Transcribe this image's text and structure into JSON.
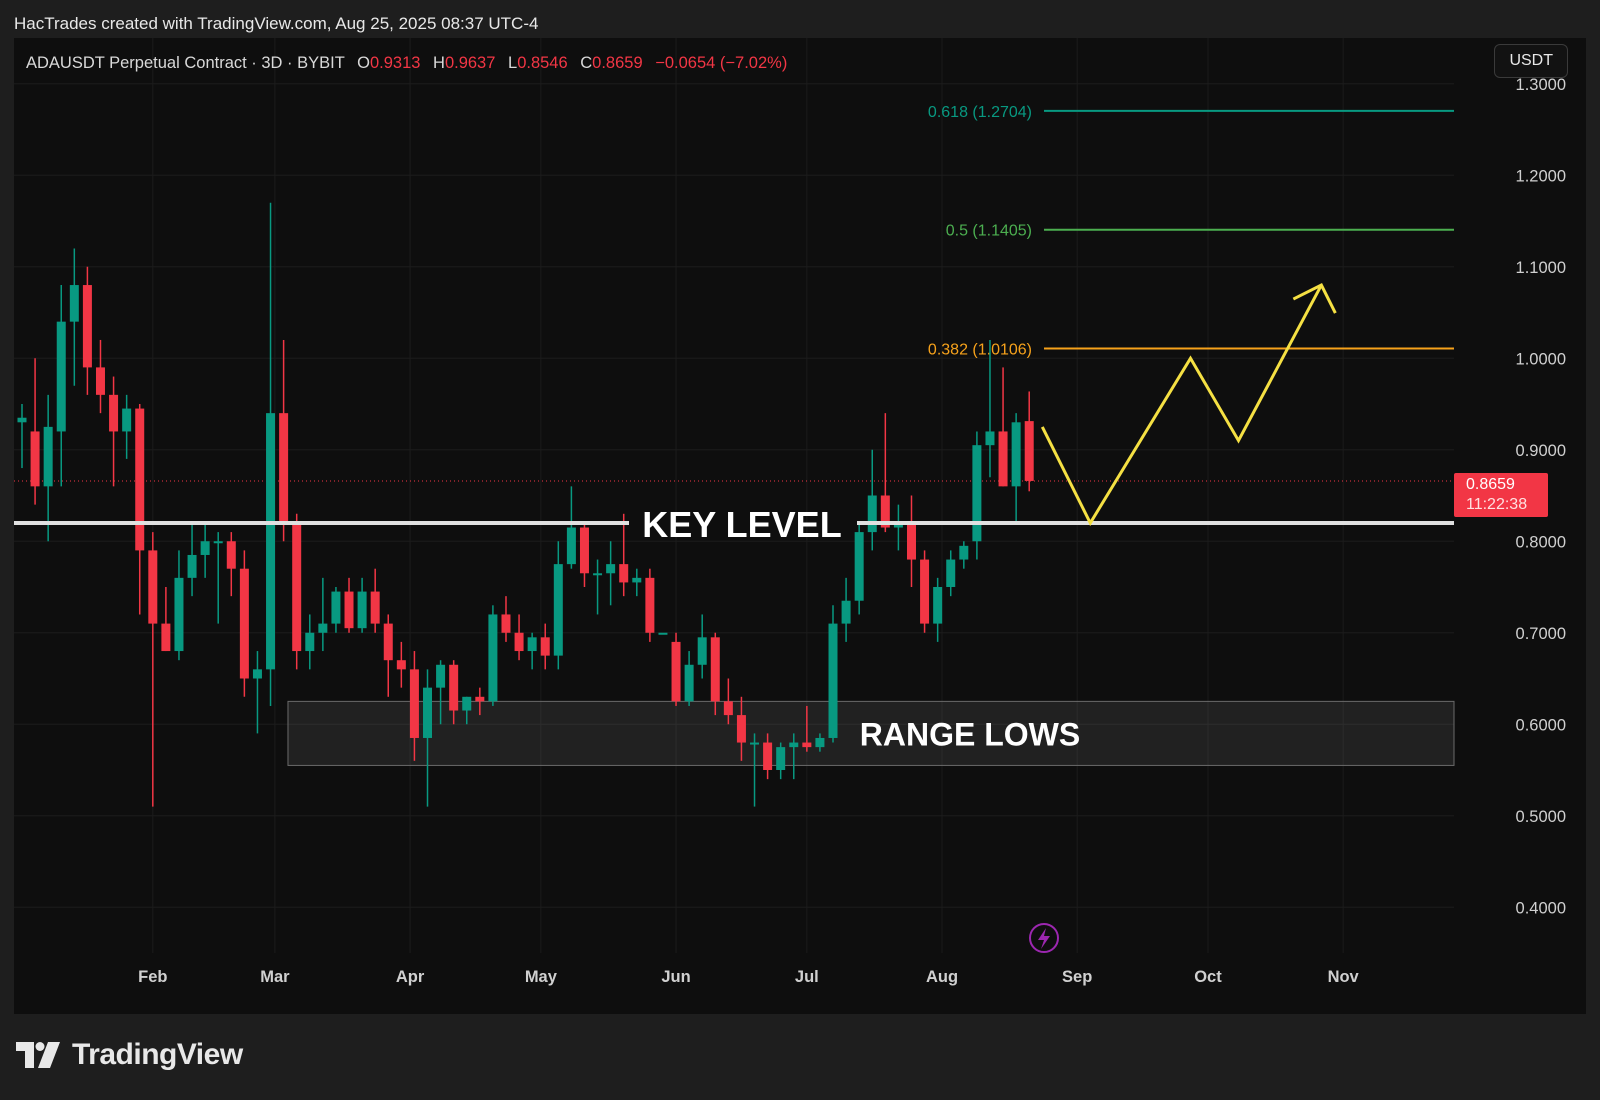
{
  "header": {
    "credit": "HacTrades created with TradingView.com, Aug 25, 2025 08:37 UTC-4"
  },
  "legend": {
    "symbol": "ADAUSDT Perpetual Contract · 3D · BYBIT",
    "open_label": "O",
    "open": "0.9313",
    "high_label": "H",
    "high": "0.9637",
    "low_label": "L",
    "low": "0.8546",
    "close_label": "C",
    "close": "0.8659",
    "change": "−0.0654 (−7.02%)"
  },
  "currency_button": "USDT",
  "brand": "TradingView",
  "colors": {
    "up": "#089981",
    "down": "#f23645",
    "fib_0618": "#089981",
    "fib_05": "#4caf50",
    "fib_0382": "#f7a21b",
    "projection": "#f5e043",
    "key_level": "#e0e0e0",
    "background": "#0e0e0e"
  },
  "chart_data": {
    "type": "candlestick",
    "y_range": [
      0.35,
      1.35
    ],
    "y_ticks": [
      "1.3000",
      "1.2000",
      "1.1000",
      "1.0000",
      "0.9000",
      "0.8000",
      "0.7000",
      "0.6000",
      "0.5000",
      "0.4000"
    ],
    "y_tick_values": [
      1.3,
      1.2,
      1.1,
      1.0,
      0.9,
      0.8,
      0.7,
      0.6,
      0.5,
      0.4
    ],
    "x_labels": [
      "Feb",
      "Mar",
      "Apr",
      "May",
      "Jun",
      "Jul",
      "Aug",
      "Sep",
      "Oct",
      "Nov"
    ],
    "x_label_dates": [
      "2025-02-01",
      "2025-03-01",
      "2025-04-01",
      "2025-05-01",
      "2025-06-01",
      "2025-07-01",
      "2025-08-01",
      "2025-09-01",
      "2025-10-01",
      "2025-11-01"
    ],
    "x_range": [
      "2025-01-02",
      "2025-11-20"
    ],
    "current_price": {
      "value": 0.8659,
      "label": "0.8659",
      "countdown": "11:22:38"
    },
    "key_level": {
      "value": 0.82,
      "label": "KEY LEVEL"
    },
    "range_lows": {
      "low": 0.555,
      "high": 0.625,
      "start": "2025-03-04",
      "label": "RANGE LOWS"
    },
    "fib_levels": [
      {
        "label": "0.618 (1.2704)",
        "value": 1.2704,
        "color": "#089981"
      },
      {
        "label": "0.5 (1.1405)",
        "value": 1.1405,
        "color": "#4caf50"
      },
      {
        "label": "0.382 (1.0106)",
        "value": 1.0106,
        "color": "#f7a21b"
      }
    ],
    "projection_path": [
      {
        "date": "2025-08-24",
        "price": 0.925
      },
      {
        "date": "2025-09-04",
        "price": 0.82
      },
      {
        "date": "2025-09-27",
        "price": 1.0
      },
      {
        "date": "2025-10-08",
        "price": 0.91
      },
      {
        "date": "2025-10-27",
        "price": 1.08
      }
    ],
    "candles": [
      {
        "date": "2025-01-02",
        "o": 0.93,
        "h": 0.95,
        "l": 0.88,
        "c": 0.935
      },
      {
        "date": "2025-01-05",
        "o": 0.92,
        "h": 1.0,
        "l": 0.84,
        "c": 0.86
      },
      {
        "date": "2025-01-08",
        "o": 0.86,
        "h": 0.96,
        "l": 0.8,
        "c": 0.925
      },
      {
        "date": "2025-01-11",
        "o": 0.92,
        "h": 1.08,
        "l": 0.86,
        "c": 1.04
      },
      {
        "date": "2025-01-14",
        "o": 1.04,
        "h": 1.12,
        "l": 0.97,
        "c": 1.08
      },
      {
        "date": "2025-01-17",
        "o": 1.08,
        "h": 1.1,
        "l": 0.96,
        "c": 0.99
      },
      {
        "date": "2025-01-20",
        "o": 0.99,
        "h": 1.02,
        "l": 0.94,
        "c": 0.96
      },
      {
        "date": "2025-01-23",
        "o": 0.96,
        "h": 0.98,
        "l": 0.86,
        "c": 0.92
      },
      {
        "date": "2025-01-26",
        "o": 0.92,
        "h": 0.96,
        "l": 0.89,
        "c": 0.945
      },
      {
        "date": "2025-01-29",
        "o": 0.945,
        "h": 0.95,
        "l": 0.72,
        "c": 0.79
      },
      {
        "date": "2025-02-01",
        "o": 0.79,
        "h": 0.81,
        "l": 0.51,
        "c": 0.71
      },
      {
        "date": "2025-02-04",
        "o": 0.71,
        "h": 0.75,
        "l": 0.68,
        "c": 0.68
      },
      {
        "date": "2025-02-07",
        "o": 0.68,
        "h": 0.79,
        "l": 0.67,
        "c": 0.76
      },
      {
        "date": "2025-02-10",
        "o": 0.76,
        "h": 0.82,
        "l": 0.74,
        "c": 0.785
      },
      {
        "date": "2025-02-13",
        "o": 0.785,
        "h": 0.82,
        "l": 0.76,
        "c": 0.8
      },
      {
        "date": "2025-02-16",
        "o": 0.8,
        "h": 0.81,
        "l": 0.71,
        "c": 0.8
      },
      {
        "date": "2025-02-19",
        "o": 0.8,
        "h": 0.81,
        "l": 0.74,
        "c": 0.77
      },
      {
        "date": "2025-02-22",
        "o": 0.77,
        "h": 0.79,
        "l": 0.63,
        "c": 0.65
      },
      {
        "date": "2025-02-25",
        "o": 0.65,
        "h": 0.68,
        "l": 0.59,
        "c": 0.66
      },
      {
        "date": "2025-02-28",
        "o": 0.66,
        "h": 1.17,
        "l": 0.62,
        "c": 0.94
      },
      {
        "date": "2025-03-03",
        "o": 0.94,
        "h": 1.02,
        "l": 0.8,
        "c": 0.82
      },
      {
        "date": "2025-03-06",
        "o": 0.82,
        "h": 0.83,
        "l": 0.66,
        "c": 0.68
      },
      {
        "date": "2025-03-09",
        "o": 0.68,
        "h": 0.72,
        "l": 0.66,
        "c": 0.7
      },
      {
        "date": "2025-03-12",
        "o": 0.7,
        "h": 0.76,
        "l": 0.68,
        "c": 0.71
      },
      {
        "date": "2025-03-15",
        "o": 0.71,
        "h": 0.75,
        "l": 0.7,
        "c": 0.745
      },
      {
        "date": "2025-03-18",
        "o": 0.745,
        "h": 0.76,
        "l": 0.7,
        "c": 0.705
      },
      {
        "date": "2025-03-21",
        "o": 0.705,
        "h": 0.76,
        "l": 0.7,
        "c": 0.745
      },
      {
        "date": "2025-03-24",
        "o": 0.745,
        "h": 0.77,
        "l": 0.7,
        "c": 0.71
      },
      {
        "date": "2025-03-27",
        "o": 0.71,
        "h": 0.72,
        "l": 0.63,
        "c": 0.67
      },
      {
        "date": "2025-03-30",
        "o": 0.67,
        "h": 0.69,
        "l": 0.64,
        "c": 0.66
      },
      {
        "date": "2025-04-02",
        "o": 0.66,
        "h": 0.68,
        "l": 0.56,
        "c": 0.585
      },
      {
        "date": "2025-04-05",
        "o": 0.585,
        "h": 0.66,
        "l": 0.51,
        "c": 0.64
      },
      {
        "date": "2025-04-08",
        "o": 0.64,
        "h": 0.67,
        "l": 0.6,
        "c": 0.665
      },
      {
        "date": "2025-04-11",
        "o": 0.665,
        "h": 0.67,
        "l": 0.6,
        "c": 0.615
      },
      {
        "date": "2025-04-14",
        "o": 0.615,
        "h": 0.63,
        "l": 0.6,
        "c": 0.63
      },
      {
        "date": "2025-04-17",
        "o": 0.63,
        "h": 0.64,
        "l": 0.61,
        "c": 0.625
      },
      {
        "date": "2025-04-20",
        "o": 0.625,
        "h": 0.73,
        "l": 0.62,
        "c": 0.72
      },
      {
        "date": "2025-04-23",
        "o": 0.72,
        "h": 0.74,
        "l": 0.69,
        "c": 0.7
      },
      {
        "date": "2025-04-26",
        "o": 0.7,
        "h": 0.72,
        "l": 0.67,
        "c": 0.68
      },
      {
        "date": "2025-04-29",
        "o": 0.68,
        "h": 0.7,
        "l": 0.66,
        "c": 0.695
      },
      {
        "date": "2025-05-02",
        "o": 0.695,
        "h": 0.71,
        "l": 0.66,
        "c": 0.675
      },
      {
        "date": "2025-05-05",
        "o": 0.675,
        "h": 0.8,
        "l": 0.66,
        "c": 0.775
      },
      {
        "date": "2025-05-08",
        "o": 0.775,
        "h": 0.86,
        "l": 0.77,
        "c": 0.815
      },
      {
        "date": "2025-05-11",
        "o": 0.815,
        "h": 0.82,
        "l": 0.75,
        "c": 0.765
      },
      {
        "date": "2025-05-14",
        "o": 0.765,
        "h": 0.78,
        "l": 0.72,
        "c": 0.765
      },
      {
        "date": "2025-05-17",
        "o": 0.765,
        "h": 0.8,
        "l": 0.73,
        "c": 0.775
      },
      {
        "date": "2025-05-20",
        "o": 0.775,
        "h": 0.83,
        "l": 0.74,
        "c": 0.755
      },
      {
        "date": "2025-05-23",
        "o": 0.755,
        "h": 0.77,
        "l": 0.74,
        "c": 0.76
      },
      {
        "date": "2025-05-26",
        "o": 0.76,
        "h": 0.77,
        "l": 0.69,
        "c": 0.7
      },
      {
        "date": "2025-05-29",
        "o": 0.7,
        "h": 0.7,
        "l": 0.7,
        "c": 0.7
      },
      {
        "date": "2025-06-01",
        "o": 0.69,
        "h": 0.7,
        "l": 0.62,
        "c": 0.625
      },
      {
        "date": "2025-06-04",
        "o": 0.625,
        "h": 0.68,
        "l": 0.62,
        "c": 0.665
      },
      {
        "date": "2025-06-07",
        "o": 0.665,
        "h": 0.72,
        "l": 0.65,
        "c": 0.695
      },
      {
        "date": "2025-06-10",
        "o": 0.695,
        "h": 0.7,
        "l": 0.61,
        "c": 0.625
      },
      {
        "date": "2025-06-13",
        "o": 0.625,
        "h": 0.65,
        "l": 0.6,
        "c": 0.61
      },
      {
        "date": "2025-06-16",
        "o": 0.61,
        "h": 0.63,
        "l": 0.56,
        "c": 0.58
      },
      {
        "date": "2025-06-19",
        "o": 0.58,
        "h": 0.59,
        "l": 0.51,
        "c": 0.58
      },
      {
        "date": "2025-06-22",
        "o": 0.58,
        "h": 0.59,
        "l": 0.54,
        "c": 0.55
      },
      {
        "date": "2025-06-25",
        "o": 0.55,
        "h": 0.58,
        "l": 0.54,
        "c": 0.575
      },
      {
        "date": "2025-06-28",
        "o": 0.575,
        "h": 0.59,
        "l": 0.54,
        "c": 0.58
      },
      {
        "date": "2025-07-01",
        "o": 0.58,
        "h": 0.62,
        "l": 0.57,
        "c": 0.575
      },
      {
        "date": "2025-07-04",
        "o": 0.575,
        "h": 0.59,
        "l": 0.57,
        "c": 0.585
      },
      {
        "date": "2025-07-07",
        "o": 0.585,
        "h": 0.73,
        "l": 0.58,
        "c": 0.71
      },
      {
        "date": "2025-07-10",
        "o": 0.71,
        "h": 0.76,
        "l": 0.69,
        "c": 0.735
      },
      {
        "date": "2025-07-13",
        "o": 0.735,
        "h": 0.82,
        "l": 0.72,
        "c": 0.81
      },
      {
        "date": "2025-07-16",
        "o": 0.81,
        "h": 0.9,
        "l": 0.79,
        "c": 0.85
      },
      {
        "date": "2025-07-19",
        "o": 0.85,
        "h": 0.94,
        "l": 0.81,
        "c": 0.815
      },
      {
        "date": "2025-07-22",
        "o": 0.815,
        "h": 0.84,
        "l": 0.79,
        "c": 0.82
      },
      {
        "date": "2025-07-25",
        "o": 0.82,
        "h": 0.85,
        "l": 0.75,
        "c": 0.78
      },
      {
        "date": "2025-07-28",
        "o": 0.78,
        "h": 0.79,
        "l": 0.7,
        "c": 0.71
      },
      {
        "date": "2025-07-31",
        "o": 0.71,
        "h": 0.76,
        "l": 0.69,
        "c": 0.75
      },
      {
        "date": "2025-08-03",
        "o": 0.75,
        "h": 0.79,
        "l": 0.74,
        "c": 0.78
      },
      {
        "date": "2025-08-06",
        "o": 0.78,
        "h": 0.8,
        "l": 0.77,
        "c": 0.795
      },
      {
        "date": "2025-08-09",
        "o": 0.8,
        "h": 0.92,
        "l": 0.78,
        "c": 0.905
      },
      {
        "date": "2025-08-12",
        "o": 0.905,
        "h": 1.02,
        "l": 0.87,
        "c": 0.92
      },
      {
        "date": "2025-08-15",
        "o": 0.92,
        "h": 0.99,
        "l": 0.86,
        "c": 0.86
      },
      {
        "date": "2025-08-18",
        "o": 0.86,
        "h": 0.94,
        "l": 0.82,
        "c": 0.93
      },
      {
        "date": "2025-08-21",
        "o": 0.9313,
        "h": 0.9637,
        "l": 0.8546,
        "c": 0.8659
      }
    ]
  }
}
